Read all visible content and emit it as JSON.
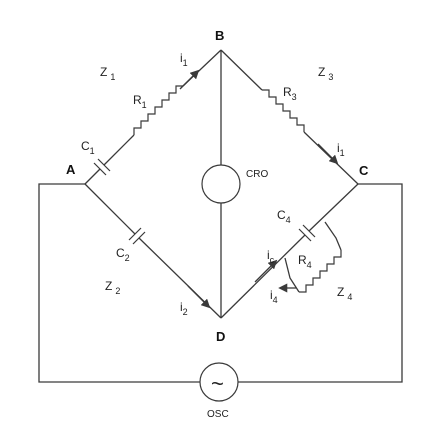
{
  "nodes": {
    "a": "A",
    "b": "B",
    "c": "C",
    "d": "D"
  },
  "impedances": {
    "z1": {
      "main": "Z",
      "sub": "1"
    },
    "z2": {
      "main": "Z",
      "sub": "2"
    },
    "z3": {
      "main": "Z",
      "sub": "3"
    },
    "z4": {
      "main": "Z",
      "sub": "4"
    }
  },
  "components": {
    "r1": {
      "main": "R",
      "sub": "1"
    },
    "r3": {
      "main": "R",
      "sub": "3"
    },
    "r4": {
      "main": "R",
      "sub": "4"
    },
    "c1": {
      "main": "C",
      "sub": "1"
    },
    "c2": {
      "main": "C",
      "sub": "2"
    },
    "c4": {
      "main": "C",
      "sub": "4"
    }
  },
  "currents": {
    "i1_left": {
      "main": "i",
      "sub": "1"
    },
    "i1_right": {
      "main": "i",
      "sub": "1"
    },
    "i2": {
      "main": "i",
      "sub": "2"
    },
    "ic": {
      "main": "i",
      "sub": "c"
    },
    "i4": {
      "main": "i",
      "sub": "4"
    }
  },
  "detector": "CRO",
  "source": "OSC",
  "source_symbol": "~",
  "colors": {
    "line": "#3a3a3a",
    "text": "#111111",
    "background": "#ffffff"
  }
}
